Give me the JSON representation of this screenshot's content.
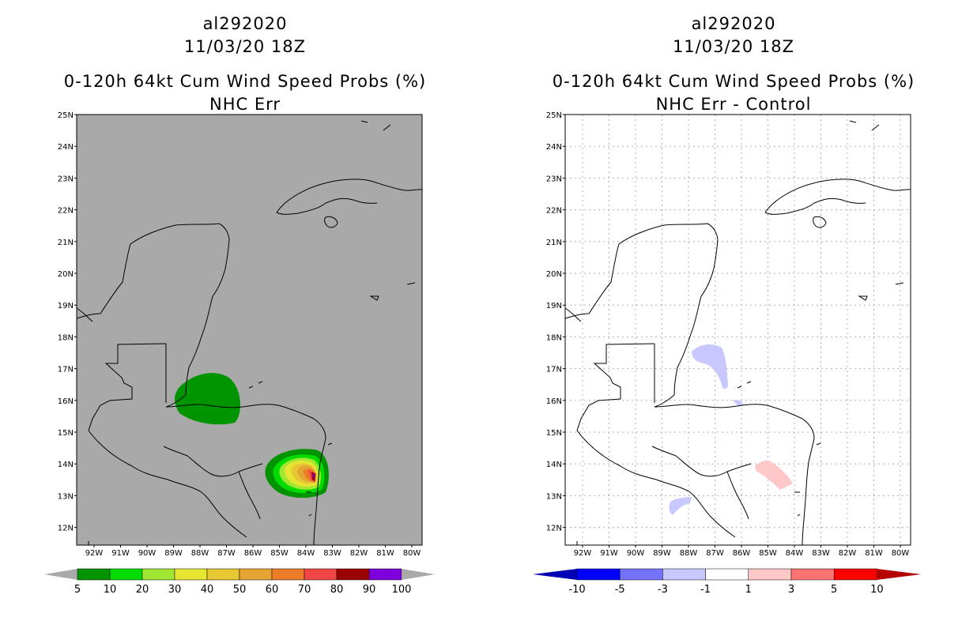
{
  "left_panel": {
    "title_line1": "al292020",
    "title_line2": "11/03/20 18Z",
    "title_line3": "0-120h 64kt Cum Wind Speed Probs (%)",
    "title_line4": "NHC Err",
    "background_color": "#a9a9a9",
    "colorbar_labels": [
      "5",
      "10",
      "20",
      "30",
      "40",
      "50",
      "60",
      "70",
      "80",
      "90",
      "100"
    ],
    "colorbar_colors": [
      "#009400",
      "#00dc00",
      "#a0e632",
      "#e6e632",
      "#e6c832",
      "#e6a532",
      "#eb7d28",
      "#f04646",
      "#9b0000",
      "#7d00dc"
    ]
  },
  "right_panel": {
    "title_line1": "al292020",
    "title_line2": "11/03/20 18Z",
    "title_line3": "0-120h 64kt Cum Wind Speed Probs (%)",
    "title_line4": "NHC Err - Control",
    "background_color": "#ffffff",
    "colorbar_labels": [
      "-10",
      "-5",
      "-3",
      "-1",
      "1",
      "3",
      "5",
      "10"
    ],
    "colorbar_colors": [
      "#0000b4",
      "#0000ff",
      "#7373ff",
      "#c8c8ff",
      "#ffffff",
      "#ffc8c8",
      "#ff7373",
      "#ff0000",
      "#b40000"
    ]
  },
  "axes": {
    "lat_labels": [
      "25N",
      "24N",
      "23N",
      "22N",
      "21N",
      "20N",
      "19N",
      "18N",
      "17N",
      "16N",
      "15N",
      "14N",
      "13N",
      "12N"
    ],
    "lon_labels": [
      "92W",
      "91W",
      "90W",
      "89W",
      "88W",
      "87W",
      "86W",
      "85W",
      "84W",
      "83W",
      "82W",
      "81W",
      "80W"
    ]
  }
}
